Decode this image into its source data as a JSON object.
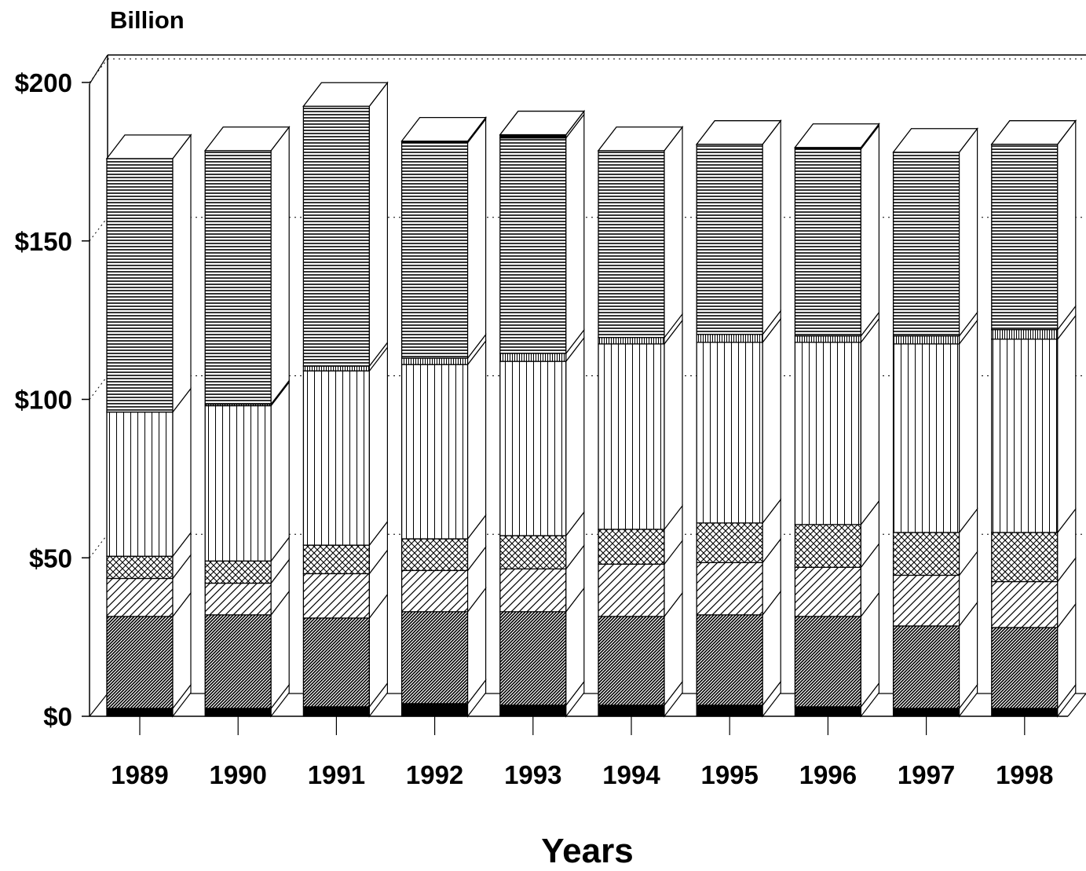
{
  "chart_data": {
    "type": "bar",
    "stacked": true,
    "three_d": true,
    "title": "",
    "ylabel": "Billion",
    "xlabel": "Years",
    "ylim": [
      0,
      200
    ],
    "yticks": [
      0,
      50,
      100,
      150,
      200
    ],
    "ytick_labels": [
      "$0",
      "$50",
      "$100",
      "$150",
      "$200"
    ],
    "grid": "dotted horizontal on back wall",
    "legend": "none",
    "categories": [
      "1989",
      "1990",
      "1991",
      "1992",
      "1993",
      "1994",
      "1995",
      "1996",
      "1997",
      "1998"
    ],
    "series": [
      {
        "pattern": "solid-black",
        "values": [
          2.5,
          2.5,
          3,
          4,
          3.5,
          3.5,
          3.5,
          3,
          2.5,
          2.5
        ]
      },
      {
        "pattern": "dense-diagonal",
        "values": [
          29,
          29.5,
          28,
          29,
          29.5,
          28,
          28.5,
          28.5,
          26,
          25.5
        ]
      },
      {
        "pattern": "wide-diagonal",
        "values": [
          12,
          10,
          14,
          13,
          13.5,
          16.5,
          16.5,
          15.5,
          16,
          14.5
        ]
      },
      {
        "pattern": "crosshatch",
        "values": [
          7,
          7,
          9,
          10,
          10.5,
          11,
          12.5,
          13.5,
          13.5,
          15.5
        ]
      },
      {
        "pattern": "vertical-lines",
        "values": [
          45.5,
          49,
          55,
          55,
          55,
          58.5,
          57,
          57.5,
          59.5,
          61
        ]
      },
      {
        "pattern": "fine-vertical",
        "values": [
          0,
          0.5,
          1.5,
          2,
          2.5,
          2,
          2.5,
          2,
          2.5,
          3
        ]
      },
      {
        "pattern": "horizontal-lines",
        "values": [
          80,
          80,
          82,
          68,
          68,
          59,
          60,
          59,
          58,
          58.5
        ]
      },
      {
        "pattern": "top-black",
        "values": [
          0,
          0,
          0,
          0.5,
          1,
          0,
          0,
          0.5,
          0,
          0
        ]
      }
    ],
    "colors": {
      "ink": "#000000",
      "background": "#ffffff"
    }
  }
}
